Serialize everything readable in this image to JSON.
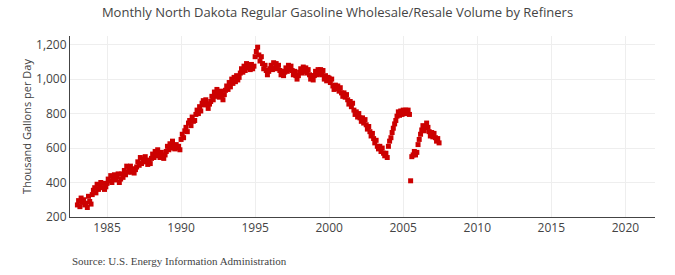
{
  "chart_data": {
    "type": "scatter",
    "title": "Monthly North Dakota Regular Gasoline Wholesale/Resale Volume by Refiners",
    "ylabel": "Thousand Gallons per Day",
    "annotations": [
      "Source: U.S. Energy Information Administration"
    ],
    "color": "#cc0000",
    "marker": "square",
    "grid": true,
    "xlim": [
      1982.5,
      2022
    ],
    "ylim": [
      200,
      1250
    ],
    "xticks": [
      1985,
      1990,
      1995,
      2000,
      2005,
      2010,
      2015,
      2020
    ],
    "yticks": [
      200,
      400,
      600,
      800,
      {
        "value": 1000,
        "label": "1,000"
      },
      {
        "value": 1200,
        "label": "1,200"
      }
    ],
    "x": [
      1983.0,
      1983.08,
      1983.17,
      1983.25,
      1983.33,
      1983.42,
      1983.5,
      1983.58,
      1983.67,
      1983.75,
      1983.83,
      1983.92,
      1984.0,
      1984.08,
      1984.17,
      1984.25,
      1984.33,
      1984.42,
      1984.5,
      1984.58,
      1984.67,
      1984.75,
      1984.83,
      1984.92,
      1985.0,
      1985.08,
      1985.17,
      1985.25,
      1985.33,
      1985.42,
      1985.5,
      1985.58,
      1985.67,
      1985.75,
      1985.83,
      1985.92,
      1986.0,
      1986.08,
      1986.17,
      1986.25,
      1986.33,
      1986.42,
      1986.5,
      1986.58,
      1986.67,
      1986.75,
      1986.83,
      1986.92,
      1987.0,
      1987.08,
      1987.17,
      1987.25,
      1987.33,
      1987.42,
      1987.5,
      1987.58,
      1987.67,
      1987.75,
      1987.83,
      1987.92,
      1988.0,
      1988.08,
      1988.17,
      1988.25,
      1988.33,
      1988.42,
      1988.5,
      1988.58,
      1988.67,
      1988.75,
      1988.83,
      1988.92,
      1989.0,
      1989.08,
      1989.17,
      1989.25,
      1989.33,
      1989.42,
      1989.5,
      1989.58,
      1989.67,
      1989.75,
      1989.83,
      1989.92,
      1990.0,
      1990.08,
      1990.17,
      1990.25,
      1990.33,
      1990.42,
      1990.5,
      1990.58,
      1990.67,
      1990.75,
      1990.83,
      1990.92,
      1991.0,
      1991.08,
      1991.17,
      1991.25,
      1991.33,
      1991.42,
      1991.5,
      1991.58,
      1991.67,
      1991.75,
      1991.83,
      1991.92,
      1992.0,
      1992.08,
      1992.17,
      1992.25,
      1992.33,
      1992.42,
      1992.5,
      1992.58,
      1992.67,
      1992.75,
      1992.83,
      1992.92,
      1993.0,
      1993.08,
      1993.17,
      1993.25,
      1993.33,
      1993.42,
      1993.5,
      1993.58,
      1993.67,
      1993.75,
      1993.83,
      1993.92,
      1994.0,
      1994.08,
      1994.17,
      1994.25,
      1994.33,
      1994.42,
      1994.5,
      1994.58,
      1994.67,
      1994.75,
      1994.83,
      1994.92,
      1995.0,
      1995.08,
      1995.17,
      1995.25,
      1995.33,
      1995.42,
      1995.5,
      1995.58,
      1995.67,
      1995.75,
      1995.83,
      1995.92,
      1996.0,
      1996.08,
      1996.17,
      1996.25,
      1996.33,
      1996.42,
      1996.5,
      1996.58,
      1996.67,
      1996.75,
      1996.83,
      1996.92,
      1997.0,
      1997.08,
      1997.17,
      1997.25,
      1997.33,
      1997.42,
      1997.5,
      1997.58,
      1997.67,
      1997.75,
      1997.83,
      1997.92,
      1998.0,
      1998.08,
      1998.17,
      1998.25,
      1998.33,
      1998.42,
      1998.5,
      1998.58,
      1998.67,
      1998.75,
      1998.83,
      1998.92,
      1999.0,
      1999.08,
      1999.17,
      1999.25,
      1999.33,
      1999.42,
      1999.5,
      1999.58,
      1999.67,
      1999.75,
      1999.83,
      1999.92,
      2000.0,
      2000.08,
      2000.17,
      2000.25,
      2000.33,
      2000.42,
      2000.5,
      2000.58,
      2000.67,
      2000.75,
      2000.83,
      2000.92,
      2001.0,
      2001.08,
      2001.17,
      2001.25,
      2001.33,
      2001.42,
      2001.5,
      2001.58,
      2001.67,
      2001.75,
      2001.83,
      2001.92,
      2002.0,
      2002.08,
      2002.17,
      2002.25,
      2002.33,
      2002.42,
      2002.5,
      2002.58,
      2002.67,
      2002.75,
      2002.83,
      2002.92,
      2003.0,
      2003.08,
      2003.17,
      2003.25,
      2003.33,
      2003.42,
      2003.5,
      2003.58,
      2003.67,
      2003.75,
      2003.83,
      2003.92,
      2004.0,
      2004.08,
      2004.17,
      2004.25,
      2004.33,
      2004.42,
      2004.5,
      2004.58,
      2004.67,
      2004.75,
      2004.83,
      2004.92,
      2005.0,
      2005.08,
      2005.17,
      2005.25,
      2005.33,
      2005.42,
      2005.5,
      2005.58,
      2005.67,
      2005.75,
      2005.83,
      2005.92,
      2006.0,
      2006.08,
      2006.17,
      2006.25,
      2006.33,
      2006.42,
      2006.5,
      2006.58,
      2006.67,
      2006.75,
      2006.83,
      2006.92,
      2007.0,
      2007.08,
      2007.17,
      2007.25,
      2007.33,
      2007.42
    ],
    "values": [
      270,
      295,
      260,
      310,
      285,
      300,
      270,
      280,
      255,
      320,
      290,
      275,
      330,
      355,
      370,
      340,
      390,
      360,
      380,
      400,
      370,
      395,
      360,
      375,
      395,
      420,
      410,
      440,
      400,
      425,
      445,
      415,
      435,
      450,
      400,
      420,
      450,
      430,
      470,
      445,
      495,
      460,
      475,
      495,
      460,
      480,
      455,
      475,
      490,
      520,
      500,
      545,
      510,
      535,
      520,
      550,
      525,
      505,
      530,
      510,
      540,
      565,
      545,
      580,
      555,
      590,
      570,
      545,
      575,
      555,
      540,
      560,
      580,
      610,
      590,
      625,
      600,
      640,
      615,
      595,
      620,
      600,
      610,
      590,
      650,
      680,
      660,
      700,
      720,
      695,
      745,
      760,
      730,
      780,
      755,
      760,
      795,
      820,
      800,
      840,
      815,
      860,
      875,
      850,
      880,
      855,
      830,
      855,
      870,
      900,
      880,
      925,
      900,
      940,
      920,
      895,
      930,
      905,
      880,
      910,
      935,
      960,
      940,
      980,
      955,
      1000,
      975,
      1010,
      985,
      1020,
      995,
      1010,
      1035,
      1060,
      1040,
      1075,
      1050,
      1090,
      1065,
      1080,
      1055,
      1085,
      1060,
      1075,
      1130,
      1160,
      1185,
      1140,
      1105,
      1130,
      1090,
      1060,
      1080,
      1050,
      1025,
      1045,
      1060,
      1080,
      1055,
      1095,
      1065,
      1090,
      1060,
      1080,
      1050,
      1025,
      1045,
      1020,
      1040,
      1065,
      1045,
      1080,
      1055,
      1075,
      1050,
      1025,
      1045,
      1020,
      1000,
      1020,
      1040,
      1060,
      1035,
      1070,
      1045,
      1065,
      1035,
      1055,
      1025,
      1000,
      1020,
      995,
      1020,
      1045,
      1025,
      1055,
      1030,
      1055,
      1025,
      1050,
      1000,
      1020,
      990,
      1010,
      1005,
      980,
      1000,
      960,
      940,
      965,
      945,
      960,
      930,
      950,
      920,
      900,
      920,
      895,
      910,
      880,
      855,
      870,
      840,
      860,
      820,
      795,
      810,
      780,
      800,
      775,
      755,
      775,
      745,
      765,
      735,
      710,
      725,
      695,
      670,
      685,
      655,
      630,
      645,
      610,
      595,
      610,
      580,
      600,
      570,
      555,
      570,
      545,
      610,
      640,
      660,
      690,
      715,
      740,
      760,
      785,
      810,
      790,
      815,
      795,
      820,
      800,
      820,
      800,
      820,
      795,
      410,
      550,
      560,
      580,
      560,
      575,
      620,
      650,
      680,
      705,
      730,
      700,
      720,
      745,
      720,
      695,
      670,
      690,
      665,
      685,
      660,
      640,
      655,
      630
    ]
  }
}
